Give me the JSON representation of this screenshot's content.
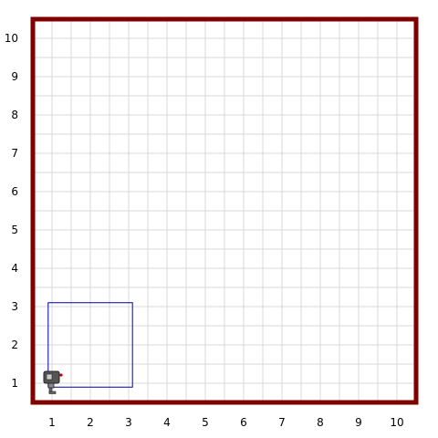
{
  "grid": {
    "x_min": 0.5,
    "x_max": 10.5,
    "y_min": 0.5,
    "y_max": 10.5,
    "line_color": "#d9d9d9",
    "wall_color": "#800000"
  },
  "x_labels": [
    "1",
    "2",
    "3",
    "4",
    "5",
    "6",
    "7",
    "8",
    "9",
    "10"
  ],
  "y_labels": [
    "1",
    "2",
    "3",
    "4",
    "5",
    "6",
    "7",
    "8",
    "9",
    "10"
  ],
  "drawn_path": {
    "color": "#0000aa",
    "points": [
      [
        0.9,
        0.9
      ],
      [
        3.1,
        0.9
      ],
      [
        3.1,
        3.1
      ],
      [
        0.9,
        3.1
      ],
      [
        0.9,
        0.9
      ]
    ]
  },
  "robot": {
    "x": 1,
    "y": 1,
    "icon": "robot-icon",
    "facing": "east",
    "body_color": "#555555",
    "eye_color": "#cc0000"
  }
}
